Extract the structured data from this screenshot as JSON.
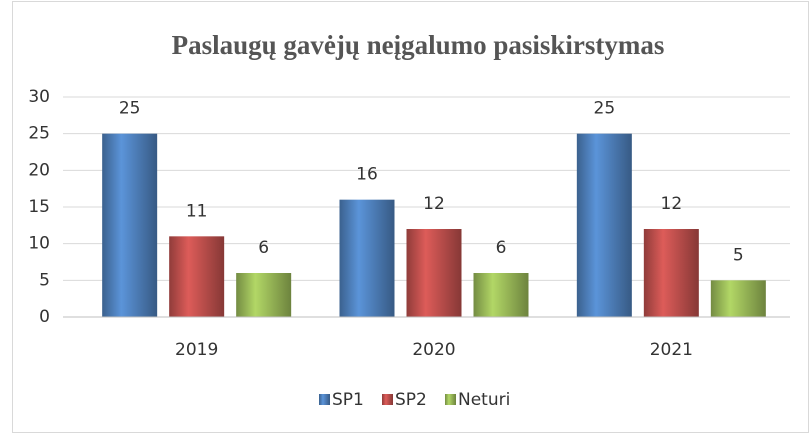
{
  "chart_data": {
    "type": "bar",
    "title": "Paslaugų gavėjų neįgalumo pasiskirstymas",
    "categories": [
      "2019",
      "2020",
      "2021"
    ],
    "series": [
      {
        "name": "SP1",
        "color": "#4f81bd",
        "values": [
          25,
          16,
          25
        ]
      },
      {
        "name": "SP2",
        "color": "#c0504d",
        "values": [
          11,
          12,
          12
        ]
      },
      {
        "name": "Neturi",
        "color": "#9bbb59",
        "values": [
          6,
          6,
          5
        ]
      }
    ],
    "ylim": [
      0,
      30
    ],
    "yticks": [
      0,
      5,
      10,
      15,
      20,
      25,
      30
    ],
    "grid": true,
    "legend": "bottom"
  }
}
